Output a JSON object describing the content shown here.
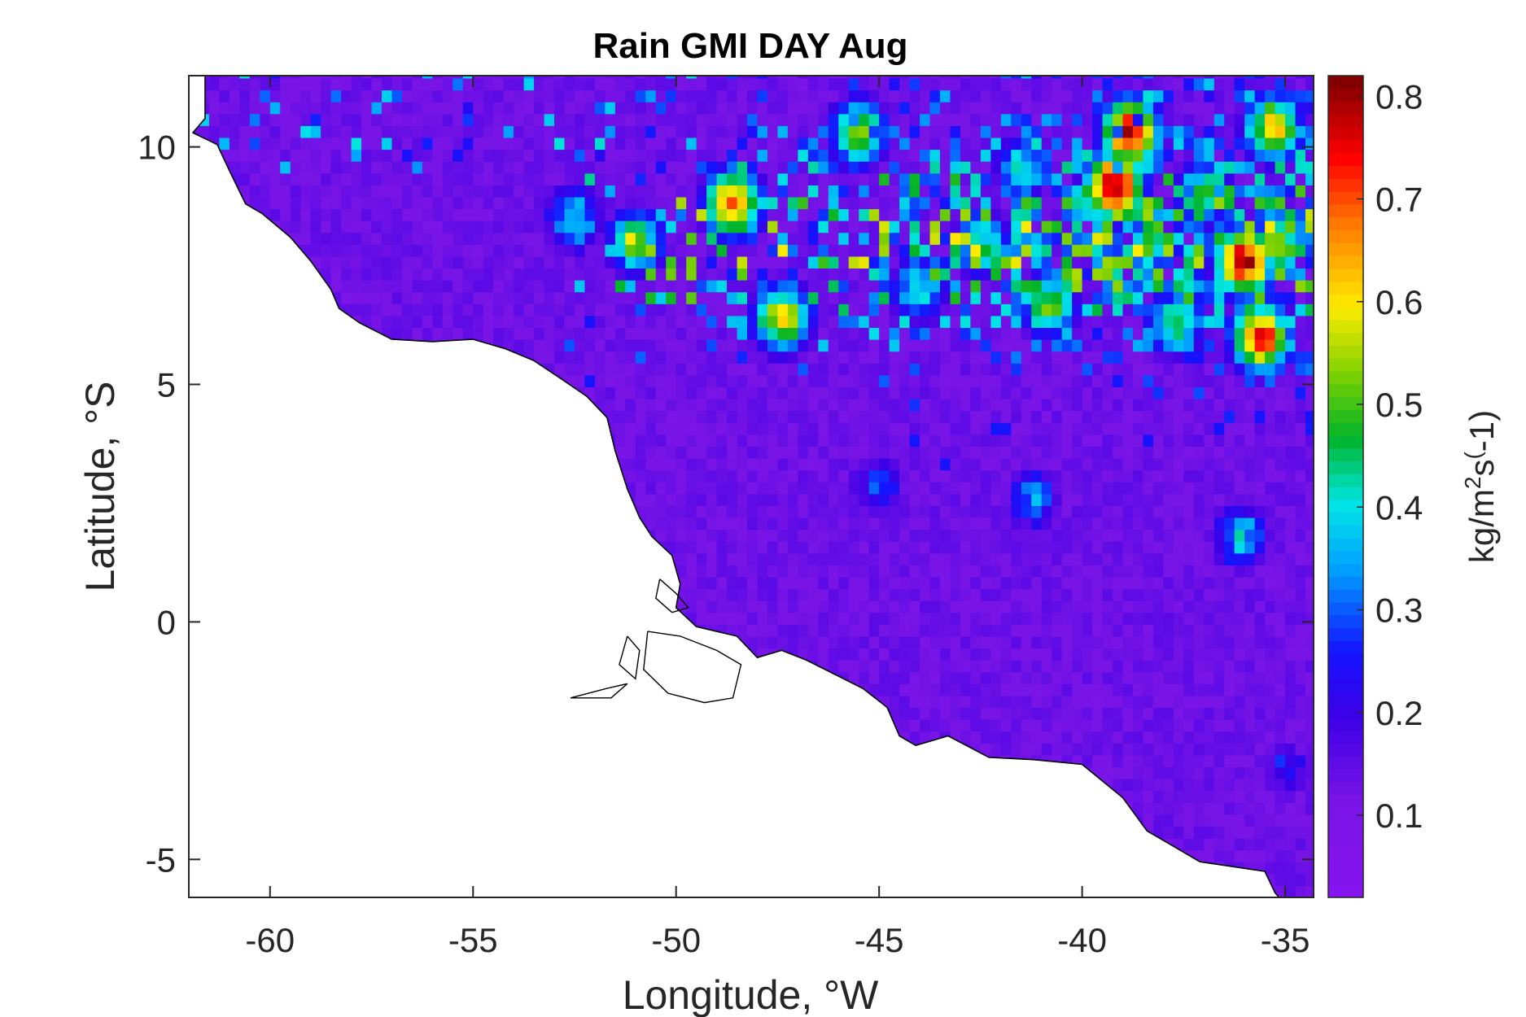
{
  "chart_data": {
    "type": "heatmap",
    "title": "Rain GMI DAY Aug",
    "xlabel": "Longitude, °W",
    "ylabel": "Latitude, °S",
    "xlim": [
      -62,
      -34.3
    ],
    "ylim": [
      -5.8,
      11.5
    ],
    "xticks": [
      -60,
      -55,
      -50,
      -45,
      -40,
      -35
    ],
    "xtick_labels": [
      "-60",
      "-55",
      "-50",
      "-45",
      "-40",
      "-35"
    ],
    "yticks": [
      -5,
      0,
      5,
      10
    ],
    "ytick_labels": [
      "-5",
      "0",
      "5",
      "10"
    ],
    "grid": false,
    "colorbar": {
      "label": "kg/m^2s^(-1)",
      "label_parts": [
        "kg/m",
        "2",
        "s",
        "(",
        "-1)"
      ],
      "range": [
        0.02,
        0.82
      ],
      "ticks": [
        0.1,
        0.2,
        0.3,
        0.4,
        0.5,
        0.6,
        0.7,
        0.8
      ],
      "tick_labels": [
        "0.1",
        "0.2",
        "0.3",
        "0.4",
        "0.5",
        "0.6",
        "0.7",
        "0.8"
      ],
      "colormap": "jet-like (purple-blue-cyan-green-yellow-red-darkred)"
    },
    "background_value": 0.13,
    "rain_cells": [
      {
        "lon": -39.2,
        "lat": 9.2,
        "value": 0.82
      },
      {
        "lon": -38.8,
        "lat": 10.3,
        "value": 0.78
      },
      {
        "lon": -36.0,
        "lat": 7.6,
        "value": 0.8
      },
      {
        "lon": -35.6,
        "lat": 6.0,
        "value": 0.74
      },
      {
        "lon": -35.3,
        "lat": 10.4,
        "value": 0.62
      },
      {
        "lon": -48.6,
        "lat": 8.8,
        "value": 0.7
      },
      {
        "lon": -47.4,
        "lat": 6.4,
        "value": 0.6
      },
      {
        "lon": -45.5,
        "lat": 10.3,
        "value": 0.55
      },
      {
        "lon": -42.5,
        "lat": 8.0,
        "value": 0.45
      },
      {
        "lon": -40.8,
        "lat": 6.7,
        "value": 0.5
      },
      {
        "lon": -37.7,
        "lat": 6.3,
        "value": 0.48
      },
      {
        "lon": -51.0,
        "lat": 8.0,
        "value": 0.5
      },
      {
        "lon": -52.5,
        "lat": 8.5,
        "value": 0.4
      },
      {
        "lon": -44.0,
        "lat": 7.0,
        "value": 0.42
      },
      {
        "lon": -41.5,
        "lat": 9.6,
        "value": 0.4
      },
      {
        "lon": -37.0,
        "lat": 9.0,
        "value": 0.45
      },
      {
        "lon": -45.0,
        "lat": 2.9,
        "value": 0.28
      },
      {
        "lon": -41.2,
        "lat": 2.6,
        "value": 0.32
      },
      {
        "lon": -36.1,
        "lat": 1.8,
        "value": 0.38
      },
      {
        "lon": -35.0,
        "lat": -3.1,
        "value": 0.25
      }
    ],
    "land": "South America coast (Guianas, Amazon mouth, NE Brazil) shown in white with black coastline"
  }
}
